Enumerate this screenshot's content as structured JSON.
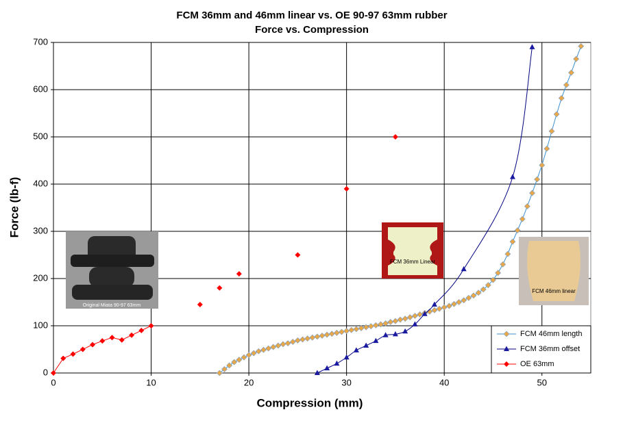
{
  "chart_data": {
    "type": "line",
    "title": "FCM 36mm and 46mm linear vs. OE 90-97 63mm rubber",
    "subtitle": "Force vs. Compression",
    "x_label": "Compression (mm)",
    "y_label": "Force (lb-f)",
    "xlim": [
      0,
      55
    ],
    "ylim": [
      0,
      700
    ],
    "xticks": [
      0,
      10,
      20,
      30,
      40,
      50
    ],
    "yticks": [
      0,
      100,
      200,
      300,
      400,
      500,
      600,
      700
    ],
    "grid": true,
    "legend": "lower right",
    "series": [
      {
        "name": "FCM 46mm length",
        "color": "#3a8fd0",
        "marker_color": "#e8a848",
        "marker": "diamond",
        "smooth": false,
        "x": [
          17,
          17.5,
          18,
          18.5,
          19,
          19.5,
          20,
          20.5,
          21,
          21.5,
          22,
          22.5,
          23,
          23.5,
          24,
          24.5,
          25,
          25.5,
          26,
          26.5,
          27,
          27.5,
          28,
          28.5,
          29,
          29.5,
          30,
          30.5,
          31,
          31.5,
          32,
          32.5,
          33,
          33.5,
          34,
          34.5,
          35,
          35.5,
          36,
          36.5,
          37,
          37.5,
          38,
          38.5,
          39,
          39.5,
          40,
          40.5,
          41,
          41.5,
          42,
          42.5,
          43,
          43.5,
          44,
          44.5,
          45,
          45.5,
          46,
          46.5,
          47,
          47.5,
          48,
          48.5,
          49,
          49.5,
          50,
          50.5,
          51,
          51.5,
          52,
          52.5,
          53,
          53.5,
          54
        ],
        "values": [
          0,
          8,
          16,
          23,
          28,
          33,
          38,
          42,
          46,
          49,
          52,
          55,
          58,
          61,
          63,
          66,
          69,
          71,
          73,
          75,
          77,
          79,
          81,
          83,
          85,
          87,
          89,
          91,
          93,
          95,
          97,
          99,
          101,
          103,
          105,
          108,
          110,
          113,
          115,
          118,
          121,
          124,
          127,
          130,
          133,
          136,
          139,
          142,
          146,
          150,
          154,
          159,
          164,
          170,
          177,
          186,
          197,
          212,
          230,
          252,
          278,
          302,
          326,
          353,
          381,
          410,
          440,
          475,
          512,
          548,
          582,
          610,
          636,
          665,
          692
        ]
      },
      {
        "name": "FCM 36mm offset",
        "color": "#000080",
        "marker_color": "#1a1aa0",
        "marker": "triangle",
        "smooth": true,
        "x": [
          27,
          28,
          29,
          30,
          31,
          32,
          33,
          34,
          35,
          36,
          37,
          38,
          39,
          42,
          47,
          49
        ],
        "values": [
          0,
          10,
          20,
          33,
          48,
          58,
          68,
          80,
          82,
          88,
          103,
          125,
          145,
          220,
          415,
          690
        ]
      },
      {
        "name": "OE 63mm",
        "color": "#ff0000",
        "marker_color": "#ff0000",
        "marker": "diamond",
        "smooth": false,
        "x": [
          0,
          1,
          2,
          3,
          4,
          5,
          6,
          7,
          8,
          9,
          10,
          11,
          12,
          13,
          14,
          15,
          16,
          17,
          18,
          19,
          20,
          21,
          22,
          23,
          24,
          25,
          26,
          27,
          28,
          29,
          30,
          31,
          32,
          33,
          34,
          35
        ],
        "values": [
          0,
          31,
          40,
          50,
          60,
          68,
          75,
          70,
          80,
          90,
          100,
          null,
          null,
          null,
          null,
          145,
          null,
          180,
          null,
          210,
          null,
          null,
          null,
          null,
          null,
          250,
          null,
          null,
          null,
          null,
          390,
          null,
          null,
          null,
          null,
          500
        ]
      }
    ],
    "images": [
      {
        "label": "Original Miata 90-97 63mm"
      },
      {
        "label": "FCM 36mm Linear"
      },
      {
        "label": "FCM 46mm linear"
      }
    ]
  }
}
